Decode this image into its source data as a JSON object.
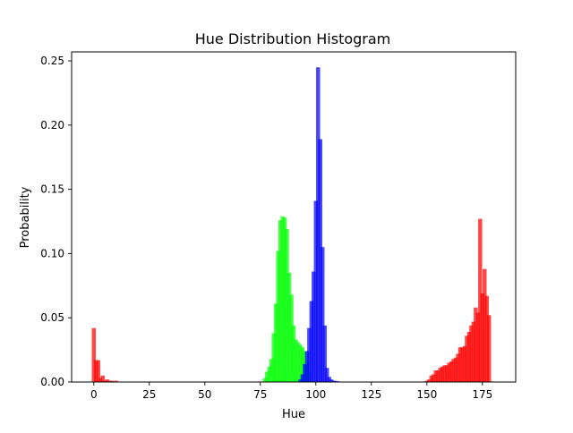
{
  "chart_data": {
    "type": "bar",
    "title": "Hue Distribution Histogram",
    "xlabel": "Hue",
    "ylabel": "Probability",
    "xlim": [
      -10,
      190
    ],
    "ylim": [
      0,
      0.257
    ],
    "xticks": [
      {
        "value": 0,
        "label": "0"
      },
      {
        "value": 25,
        "label": "25"
      },
      {
        "value": 50,
        "label": "50"
      },
      {
        "value": 75,
        "label": "75"
      },
      {
        "value": 100,
        "label": "100"
      },
      {
        "value": 125,
        "label": "125"
      },
      {
        "value": 150,
        "label": "150"
      },
      {
        "value": 175,
        "label": "175"
      }
    ],
    "yticks": [
      {
        "value": 0.0,
        "label": "0.00"
      },
      {
        "value": 0.05,
        "label": "0.05"
      },
      {
        "value": 0.1,
        "label": "0.10"
      },
      {
        "value": 0.15,
        "label": "0.15"
      },
      {
        "value": 0.2,
        "label": "0.20"
      },
      {
        "value": 0.25,
        "label": "0.25"
      }
    ],
    "grid": false,
    "legend": "none",
    "bin_width": 1.8,
    "series": [
      {
        "color": "#ff0000",
        "opacity": 0.72,
        "x": [
          0,
          2,
          4,
          6,
          8,
          10,
          150,
          152,
          154,
          156,
          158,
          160,
          162,
          164,
          166,
          168,
          170,
          172,
          174,
          176,
          178
        ],
        "values": [
          0.042,
          0.017,
          0.005,
          0.002,
          0.001,
          0.001,
          0.001,
          0.005,
          0.009,
          0.011,
          0.013,
          0.015,
          0.018,
          0.022,
          0.027,
          0.036,
          0.044,
          0.058,
          0.127,
          0.088,
          0.052
        ]
      },
      {
        "color": "#ff0000",
        "opacity": 0.72,
        "x": [
          1,
          3,
          5,
          7,
          9,
          151,
          153,
          155,
          157,
          159,
          161,
          163,
          165,
          167,
          169,
          171,
          173,
          175,
          177,
          179
        ],
        "values": [
          0.017,
          0.003,
          0.001,
          0.001,
          0.0005,
          0.002,
          0.006,
          0.009,
          0.012,
          0.013,
          0.016,
          0.019,
          0.027,
          0.028,
          0.039,
          0.047,
          0.054,
          0.069,
          0.067,
          0.0005
        ]
      },
      {
        "color": "#00ff00",
        "opacity": 0.72,
        "x": [
          77,
          78,
          79,
          80,
          81,
          82,
          83,
          84,
          85,
          86,
          87,
          88,
          89,
          90,
          91,
          92,
          93,
          94,
          95,
          96,
          97
        ],
        "values": [
          0.003,
          0.008,
          0.012,
          0.018,
          0.038,
          0.061,
          0.102,
          0.126,
          0.129,
          0.128,
          0.119,
          0.085,
          0.068,
          0.044,
          0.033,
          0.031,
          0.029,
          0.027,
          0.024,
          0.016,
          0.008
        ]
      },
      {
        "color": "#0000ff",
        "opacity": 0.72,
        "x": [
          93,
          94,
          95,
          96,
          97,
          98,
          99,
          100,
          101,
          102,
          103,
          104,
          105,
          106,
          107,
          108,
          109,
          110
        ],
        "values": [
          0.002,
          0.006,
          0.014,
          0.024,
          0.042,
          0.063,
          0.086,
          0.141,
          0.245,
          0.189,
          0.105,
          0.044,
          0.011,
          0.004,
          0.002,
          0.001,
          0.0008,
          0.0005
        ]
      }
    ]
  }
}
